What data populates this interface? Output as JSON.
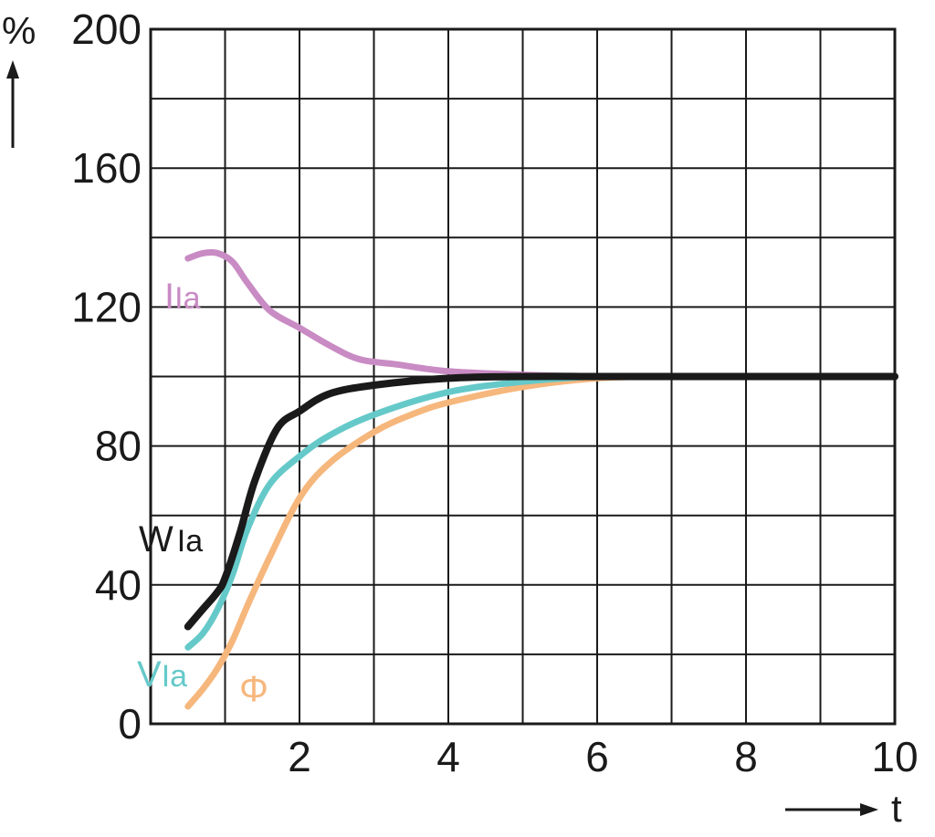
{
  "chart_data": {
    "type": "line",
    "title": "",
    "xlabel": "t",
    "ylabel": "%",
    "xlim": [
      0,
      10
    ],
    "ylim": [
      0,
      200
    ],
    "x_ticks": [
      2,
      4,
      6,
      8,
      10
    ],
    "y_ticks": [
      0,
      40,
      80,
      120,
      160,
      200
    ],
    "grid": true,
    "x_grid_step": 1,
    "y_grid_step": 20,
    "series": [
      {
        "name": "IIa",
        "color": "#c98bc4",
        "x": [
          0.5,
          0.7,
          0.9,
          1.1,
          1.3,
          1.6,
          2.0,
          2.4,
          2.8,
          3.3,
          4.0,
          5.0,
          6.0,
          7.0,
          8.0,
          10.0
        ],
        "y": [
          134,
          135.5,
          135.5,
          133,
          127,
          119,
          114,
          109,
          105,
          103.5,
          101.5,
          100.5,
          100,
          100,
          100,
          100
        ]
      },
      {
        "name": "ΦIa",
        "color": "#f6b77d",
        "x": [
          0.5,
          0.7,
          0.9,
          1.1,
          1.3,
          1.6,
          2.0,
          2.4,
          3.0,
          3.5,
          4.0,
          5.0,
          6.0,
          7.0,
          8.0,
          10.0
        ],
        "y": [
          5,
          10,
          16,
          24,
          34,
          48,
          65,
          75,
          84,
          89,
          92.5,
          97,
          99.5,
          100,
          100,
          100
        ]
      },
      {
        "name": "VIa",
        "color": "#66c9c9",
        "x": [
          0.5,
          0.7,
          0.9,
          1.1,
          1.3,
          1.6,
          2.0,
          2.4,
          3.0,
          4.0,
          5.0,
          6.0,
          7.0,
          8.0,
          10.0
        ],
        "y": [
          22,
          26,
          33,
          43,
          56,
          69,
          77,
          83,
          89,
          95.5,
          98.5,
          100,
          100,
          100,
          100
        ]
      },
      {
        "name": "WIa",
        "color": "#1a1a1a",
        "x": [
          0.5,
          0.7,
          0.9,
          1.0,
          1.2,
          1.4,
          1.7,
          2.0,
          2.4,
          3.0,
          4.0,
          5.0,
          6.0,
          7.0,
          8.0,
          10.0
        ],
        "y": [
          28,
          33,
          38,
          42,
          55,
          70,
          85,
          90,
          95,
          97.5,
          99.5,
          100,
          100,
          100,
          100,
          100
        ]
      }
    ]
  },
  "labels": {
    "iia_main": "I",
    "iia_sub": "Ia",
    "wia_main": "W",
    "wia_sub": "Ia",
    "via_main": "V",
    "via_sub": "Ia",
    "phi": "Φ"
  }
}
